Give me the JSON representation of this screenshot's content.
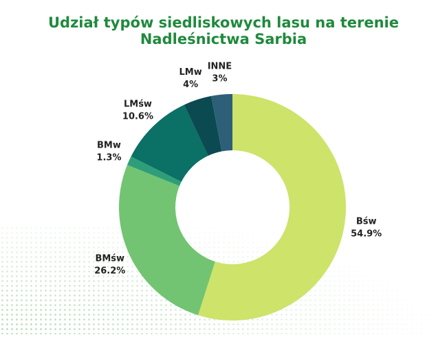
{
  "chart_data": {
    "type": "donut",
    "title": [
      "Udział typów siedliskowych lasu na terenie",
      "Nadleśnictwa Sarbia"
    ],
    "categories": [
      "Bśw",
      "BMśw",
      "BMw",
      "LMśw",
      "LMw",
      "INNE"
    ],
    "values": [
      54.9,
      26.2,
      1.3,
      10.6,
      4,
      3
    ],
    "value_labels": [
      "54.9%",
      "26.2%",
      "1.3%",
      "10.6%",
      "4%",
      "3%"
    ],
    "colors": [
      "#cde36a",
      "#72c472",
      "#2e9e78",
      "#0b7065",
      "#0b4a50",
      "#2e5f78"
    ]
  }
}
